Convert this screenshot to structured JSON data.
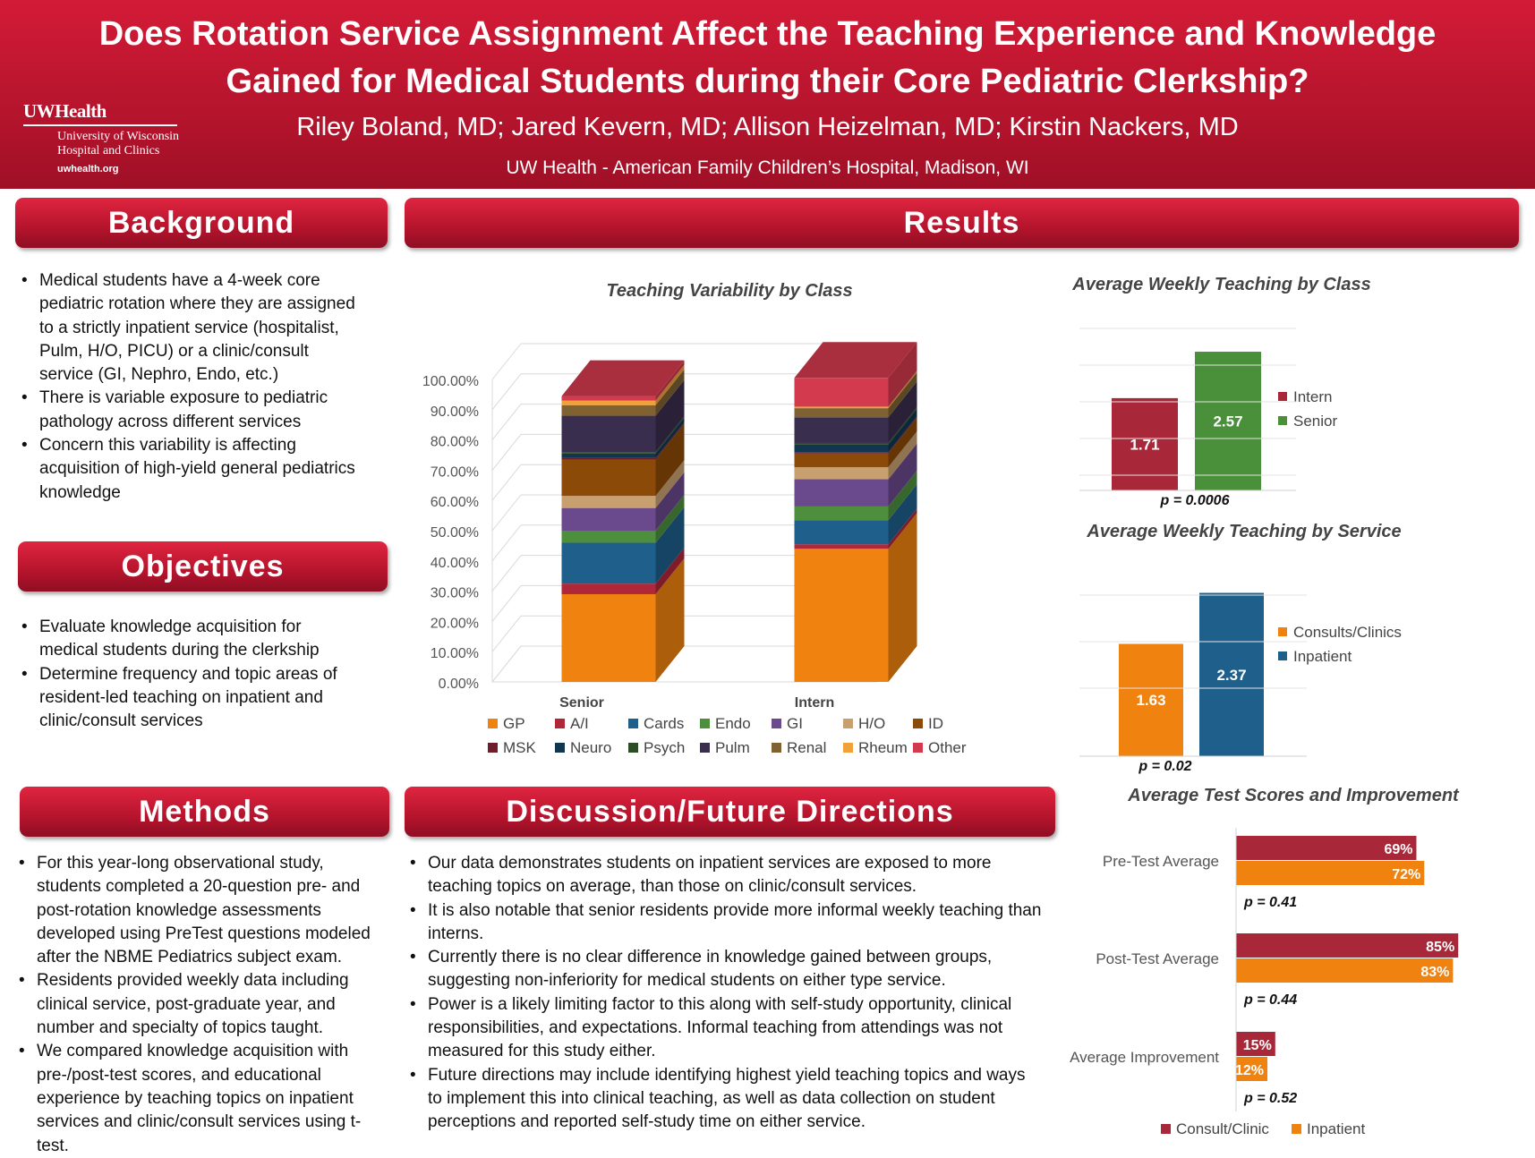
{
  "header": {
    "title": "Does Rotation Service Assignment Affect the Teaching Experience and Knowledge Gained for Medical Students during their Core Pediatric Clerkship?",
    "authors": "Riley Boland, MD; Jared Kevern, MD; Allison Heizelman, MD; Kirstin Nackers, MD",
    "affiliation": "UW Health - American Family Children’s Hospital, Madison, WI",
    "logo": {
      "brand": "UWHealth",
      "line1": "University of Wisconsin",
      "line2": "Hospital and Clinics",
      "url": "uwhealth.org"
    }
  },
  "background": {
    "heading": "Background",
    "items": [
      "Medical students have a 4-week core pediatric rotation where they are assigned to a strictly inpatient service (hospitalist, Pulm, H/O, PICU) or a clinic/consult service (GI, Nephro, Endo, etc.)",
      "There is variable exposure to pediatric pathology across different services",
      "Concern this variability is affecting acquisition of high-yield general pediatrics knowledge"
    ]
  },
  "objectives": {
    "heading": "Objectives",
    "items": [
      "Evaluate knowledge acquisition for medical students during the clerkship",
      "Determine frequency and topic areas of resident-led teaching on inpatient and clinic/consult services"
    ]
  },
  "methods": {
    "heading": "Methods",
    "items": [
      "For this year-long observational study, students completed a 20-question pre- and post-rotation knowledge assessments developed using PreTest questions modeled after the NBME Pediatrics subject exam.",
      "Residents provided weekly data including clinical service, post-graduate year, and number and specialty of topics taught.",
      "We compared knowledge acquisition with pre-/post-test scores, and educational experience by teaching topics on inpatient services and clinic/consult services using t-test."
    ]
  },
  "results": {
    "heading": "Results"
  },
  "discussion": {
    "heading": "Discussion/Future Directions",
    "items": [
      "Our data demonstrates students on inpatient services are exposed to more teaching topics on average, than those on clinic/consult services.",
      "It is also notable that senior residents provide more informal weekly teaching than interns.",
      "Currently there is no clear difference in knowledge gained between groups, suggesting non-inferiority for medical students on either type service.",
      "Power is a likely limiting factor to this along with self-study opportunity, clinical responsibilities, and expectations. Informal teaching from attendings was not measured for this study either.",
      "Future directions may include identifying highest yield teaching topics and ways to implement this into clinical teaching, as well as data collection on student perceptions and reported self-study time on either service."
    ]
  },
  "chart_data": [
    {
      "type": "bar",
      "stacked": true,
      "title": "Teaching Variability by Class",
      "categories": [
        "Senior",
        "Intern"
      ],
      "ylim": [
        0,
        100
      ],
      "yticks": [
        "0.00%",
        "10.00%",
        "20.00%",
        "30.00%",
        "40.00%",
        "50.00%",
        "60.00%",
        "70.00%",
        "80.00%",
        "90.00%",
        "100.00%"
      ],
      "legend_position": "bottom",
      "series": [
        {
          "name": "GP",
          "color": "#f0820f",
          "values": [
            29,
            44
          ]
        },
        {
          "name": "A/I",
          "color": "#b1273a",
          "values": [
            3.5,
            1.5
          ]
        },
        {
          "name": "Cards",
          "color": "#1f5f8b",
          "values": [
            13.5,
            8
          ]
        },
        {
          "name": "Endo",
          "color": "#4e8f3e",
          "values": [
            4,
            4.5
          ]
        },
        {
          "name": "GI",
          "color": "#6a4a8c",
          "values": [
            7.5,
            9
          ]
        },
        {
          "name": "H/O",
          "color": "#c8a070",
          "values": [
            4,
            4
          ]
        },
        {
          "name": "ID",
          "color": "#8c4a09",
          "values": [
            12,
            4.5
          ]
        },
        {
          "name": "MSK",
          "color": "#6e1e2a",
          "values": [
            0.5,
            0.5
          ]
        },
        {
          "name": "Neuro",
          "color": "#123650",
          "values": [
            1.5,
            2.5
          ]
        },
        {
          "name": "Psych",
          "color": "#2b4d23",
          "values": [
            0.5,
            0.5
          ]
        },
        {
          "name": "Pulm",
          "color": "#3a2e4e",
          "values": [
            12,
            8.5
          ]
        },
        {
          "name": "Renal",
          "color": "#806232",
          "values": [
            3.5,
            3
          ]
        },
        {
          "name": "Rheum",
          "color": "#f2a03a",
          "values": [
            1.5,
            0.5
          ]
        },
        {
          "name": "Other",
          "color": "#d33a4e",
          "values": [
            1.5,
            9.5
          ]
        }
      ]
    },
    {
      "type": "bar",
      "title": "Average Weekly Teaching by Class",
      "categories": [
        "Intern",
        "Senior"
      ],
      "values": [
        1.71,
        2.57
      ],
      "labels": [
        "1.71",
        "2.57"
      ],
      "colors": [
        "#a8283a",
        "#4a8f3a"
      ],
      "legend_position": "right",
      "pvalue": "p = 0.0006"
    },
    {
      "type": "bar",
      "title": "Average Weekly Teaching by Service",
      "categories": [
        "Consults/Clinics",
        "Inpatient"
      ],
      "values": [
        1.63,
        2.37
      ],
      "labels": [
        "1.63",
        "2.37"
      ],
      "colors": [
        "#f0820f",
        "#1f5f8b"
      ],
      "legend_position": "right",
      "pvalue": "p = 0.02"
    },
    {
      "type": "bar",
      "orientation": "horizontal",
      "title": "Average Test Scores and Improvement",
      "categories": [
        "Pre-Test Average",
        "Post-Test Average",
        "Average Improvement"
      ],
      "xlim": [
        0,
        100
      ],
      "legend_position": "bottom",
      "series": [
        {
          "name": "Consult/Clinic",
          "color": "#a8283a",
          "values": [
            69,
            85,
            15
          ],
          "labels": [
            "69%",
            "85%",
            "15%"
          ]
        },
        {
          "name": "Inpatient",
          "color": "#f0820f",
          "values": [
            72,
            83,
            12
          ],
          "labels": [
            "72%",
            "83%",
            "12%"
          ]
        }
      ],
      "pvalues": [
        "p = 0.41",
        "p = 0.44",
        "p = 0.52"
      ]
    }
  ]
}
